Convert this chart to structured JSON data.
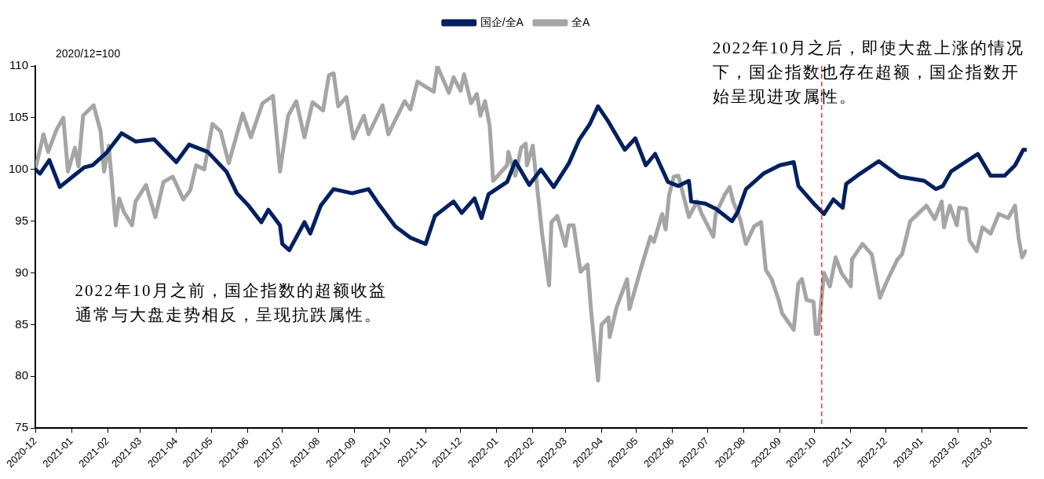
{
  "chart_data": {
    "type": "line",
    "ylabel": "2020/12=100",
    "legend": "top",
    "marker": "none",
    "line_style": "solid",
    "grid": false,
    "xlim": [
      "2020-12",
      "2023-04"
    ],
    "xticks": [
      "2020-12",
      "2021-01",
      "2021-02",
      "2021-03",
      "2021-04",
      "2021-05",
      "2021-06",
      "2021-07",
      "2021-08",
      "2021-09",
      "2021-10",
      "2021-11",
      "2021-12",
      "2022-01",
      "2022-02",
      "2022-03",
      "2022-04",
      "2022-05",
      "2022-06",
      "2022-07",
      "2022-08",
      "2022-09",
      "2022-10",
      "2022-11",
      "2022-12",
      "2023-01",
      "2023-02",
      "2023-03"
    ],
    "ylim": [
      75,
      110
    ],
    "yticks": [
      75,
      80,
      85,
      90,
      95,
      100,
      105,
      110
    ],
    "ref_lines": [
      {
        "axis": "x",
        "value": "2022-10-07",
        "color": "#ff0000",
        "line_style": "dashed"
      }
    ],
    "annotations": [
      "2022年10月之前，国企指数的超额收益通常与大盘走势相反，呈现抗跌属性。",
      "2022年10月之后，即使大盘上涨的情况下，国企指数也存在超额，国企指数开始呈现进攻属性。"
    ],
    "series": [
      {
        "name": "国企/全A",
        "color": "#002060",
        "x": [
          "2020-12-01",
          "2020-12-05",
          "2020-12-13",
          "2020-12-22",
          "2021-01-03",
          "2021-01-12",
          "2021-01-19",
          "2021-01-31",
          "2021-02-13",
          "2021-02-25",
          "2021-03-13",
          "2021-04-01",
          "2021-04-12",
          "2021-04-21",
          "2021-04-28",
          "2021-05-14",
          "2021-05-23",
          "2021-06-02",
          "2021-06-13",
          "2021-06-19",
          "2021-06-29",
          "2021-07-01",
          "2021-07-07",
          "2021-07-20",
          "2021-07-25",
          "2021-08-03",
          "2021-08-14",
          "2021-08-30",
          "2021-09-13",
          "2021-09-22",
          "2021-10-06",
          "2021-10-19",
          "2021-11-01",
          "2021-11-09",
          "2021-11-25",
          "2021-12-02",
          "2021-12-13",
          "2021-12-19",
          "2021-12-25",
          "2022-01-10",
          "2022-01-17",
          "2022-01-29",
          "2022-02-08",
          "2022-02-19",
          "2022-03-04",
          "2022-03-13",
          "2022-03-22",
          "2022-03-29",
          "2022-04-07",
          "2022-04-21",
          "2022-04-30",
          "2022-05-09",
          "2022-05-17",
          "2022-05-28",
          "2022-06-06",
          "2022-06-15",
          "2022-06-17",
          "2022-06-29",
          "2022-07-08",
          "2022-07-22",
          "2022-07-27",
          "2022-08-03",
          "2022-08-18",
          "2022-09-01",
          "2022-09-13",
          "2022-09-17",
          "2022-10-01",
          "2022-10-09",
          "2022-10-17",
          "2022-10-25",
          "2022-10-28",
          "2022-11-09",
          "2022-11-25",
          "2022-12-13",
          "2023-01-03",
          "2023-01-13",
          "2023-01-19",
          "2023-01-26",
          "2023-02-18",
          "2023-03-01",
          "2023-03-13",
          "2023-03-22",
          "2023-03-29",
          "2023-03-31"
        ],
        "values": [
          100,
          99.6,
          100.9,
          98.3,
          99.4,
          100.2,
          100.4,
          101.6,
          103.5,
          102.7,
          102.9,
          100.7,
          102.4,
          102.0,
          101.7,
          99.8,
          97.7,
          96.5,
          94.9,
          96.1,
          94.6,
          92.8,
          92.2,
          94.9,
          93.8,
          96.5,
          98.1,
          97.7,
          98.1,
          96.6,
          94.5,
          93.4,
          92.8,
          95.5,
          96.9,
          95.8,
          97.2,
          95.3,
          97.6,
          98.8,
          100.8,
          98.5,
          100.0,
          98.3,
          100.6,
          102.9,
          104.4,
          106.1,
          104.6,
          101.9,
          103.0,
          100.4,
          101.5,
          98.8,
          98.4,
          98.9,
          96.9,
          96.7,
          96.2,
          95.0,
          95.9,
          98.1,
          99.6,
          100.4,
          100.7,
          98.4,
          96.6,
          95.7,
          97.1,
          96.3,
          98.6,
          99.6,
          100.8,
          99.3,
          98.9,
          98.1,
          98.4,
          99.8,
          101.5,
          99.4,
          99.4,
          100.4,
          101.9,
          101.9
        ]
      },
      {
        "name": "全A",
        "color": "#a5a5a5",
        "x": [
          "2020-12-01",
          "2020-12-08",
          "2020-12-12",
          "2020-12-19",
          "2020-12-25",
          "2020-12-29",
          "2021-01-04",
          "2021-01-07",
          "2021-01-11",
          "2021-01-20",
          "2021-01-26",
          "2021-01-29",
          "2021-02-02",
          "2021-02-08",
          "2021-02-11",
          "2021-02-15",
          "2021-02-22",
          "2021-02-25",
          "2021-03-06",
          "2021-03-14",
          "2021-03-21",
          "2021-03-29",
          "2021-04-07",
          "2021-04-13",
          "2021-04-18",
          "2021-04-25",
          "2021-05-02",
          "2021-05-09",
          "2021-05-16",
          "2021-05-28",
          "2021-06-04",
          "2021-06-14",
          "2021-06-23",
          "2021-06-29",
          "2021-07-06",
          "2021-07-13",
          "2021-07-20",
          "2021-07-27",
          "2021-08-05",
          "2021-08-10",
          "2021-08-14",
          "2021-08-18",
          "2021-08-25",
          "2021-08-31",
          "2021-09-09",
          "2021-09-13",
          "2021-09-25",
          "2021-09-30",
          "2021-10-14",
          "2021-10-19",
          "2021-10-25",
          "2021-11-08",
          "2021-11-11",
          "2021-11-21",
          "2021-11-25",
          "2021-12-01",
          "2021-12-04",
          "2021-12-10",
          "2021-12-15",
          "2021-12-18",
          "2021-12-22",
          "2021-12-26",
          "2021-12-29",
          "2022-01-10",
          "2022-01-11",
          "2022-01-17",
          "2022-01-22",
          "2022-01-26",
          "2022-01-27",
          "2022-02-01",
          "2022-02-09",
          "2022-02-15",
          "2022-02-17",
          "2022-02-22",
          "2022-03-01",
          "2022-03-04",
          "2022-03-08",
          "2022-03-14",
          "2022-03-20",
          "2022-03-23",
          "2022-03-29",
          "2022-04-01",
          "2022-04-07",
          "2022-04-08",
          "2022-04-14",
          "2022-04-23",
          "2022-04-25",
          "2022-05-05",
          "2022-05-13",
          "2022-05-16",
          "2022-05-23",
          "2022-05-26",
          "2022-05-29",
          "2022-06-02",
          "2022-06-06",
          "2022-06-15",
          "2022-06-22",
          "2022-06-26",
          "2022-07-06",
          "2022-07-08",
          "2022-07-16",
          "2022-07-20",
          "2022-07-23",
          "2022-07-29",
          "2022-08-03",
          "2022-08-10",
          "2022-08-16",
          "2022-08-20",
          "2022-08-25",
          "2022-08-31",
          "2022-09-03",
          "2022-09-13",
          "2022-09-17",
          "2022-09-20",
          "2022-09-24",
          "2022-09-30",
          "2022-10-02",
          "2022-10-04",
          "2022-10-07",
          "2022-10-09",
          "2022-10-14",
          "2022-10-19",
          "2022-10-24",
          "2022-11-01",
          "2022-11-02",
          "2022-11-11",
          "2022-11-19",
          "2022-11-26",
          "2022-12-02",
          "2022-12-11",
          "2022-12-15",
          "2022-12-22",
          "2023-01-05",
          "2023-01-12",
          "2023-01-18",
          "2023-01-20",
          "2023-01-25",
          "2023-01-31",
          "2023-02-02",
          "2023-02-08",
          "2023-02-11",
          "2023-02-17",
          "2023-02-22",
          "2023-03-01",
          "2023-03-08",
          "2023-03-16",
          "2023-03-22",
          "2023-03-25",
          "2023-03-28",
          "2023-03-31"
        ],
        "values": [
          100,
          103.4,
          101.7,
          103.8,
          105.0,
          99.8,
          102.1,
          100.3,
          105.2,
          106.2,
          103.7,
          99.8,
          102.3,
          94.6,
          97.2,
          95.9,
          94.6,
          96.9,
          98.5,
          95.4,
          98.8,
          99.3,
          97.1,
          98.0,
          100.4,
          100.0,
          104.4,
          103.7,
          100.6,
          105.4,
          103.1,
          106.4,
          107.1,
          99.8,
          105.2,
          106.6,
          103.1,
          106.5,
          105.7,
          109.1,
          109.3,
          106.1,
          107.0,
          103.0,
          105.2,
          103.4,
          106.2,
          103.4,
          106.6,
          105.8,
          108.5,
          107.5,
          110.0,
          107.4,
          108.9,
          107.6,
          109.2,
          106.4,
          107.3,
          105.2,
          106.6,
          104.2,
          98.9,
          100.4,
          101.7,
          99.4,
          102.1,
          102.5,
          100.4,
          102.3,
          93.8,
          88.8,
          94.9,
          95.5,
          92.6,
          94.6,
          94.6,
          90.1,
          90.8,
          86.4,
          79.6,
          85.0,
          85.7,
          83.8,
          86.7,
          89.4,
          86.5,
          90.5,
          93.5,
          93.0,
          95.7,
          94.2,
          97.5,
          99.3,
          99.4,
          95.4,
          96.9,
          95.7,
          93.5,
          95.7,
          97.6,
          98.3,
          96.9,
          95.2,
          92.8,
          94.5,
          94.9,
          90.3,
          89.4,
          87.4,
          86.1,
          84.5,
          89.0,
          89.4,
          87.4,
          87.2,
          84.1,
          84.1,
          87.7,
          90.0,
          88.7,
          91.5,
          90.0,
          88.7,
          91.3,
          92.8,
          91.8,
          87.6,
          89.2,
          91.3,
          91.8,
          95.0,
          96.5,
          95.2,
          96.9,
          94.4,
          96.5,
          94.6,
          96.3,
          96.2,
          93.1,
          92.1,
          94.4,
          93.8,
          95.7,
          95.3,
          96.5,
          93.4,
          91.5,
          92.1
        ]
      }
    ]
  }
}
